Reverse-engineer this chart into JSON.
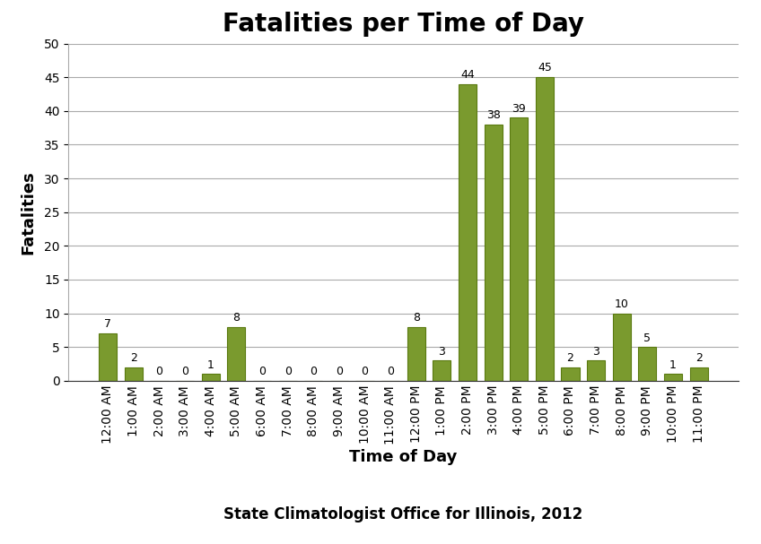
{
  "title": "Fatalities per Time of Day",
  "xlabel": "Time of Day",
  "ylabel": "Fatalities",
  "source": "State Climatologist Office for Illinois, 2012",
  "categories": [
    "12:00 AM",
    "1:00 AM",
    "2:00 AM",
    "3:00 AM",
    "4:00 AM",
    "5:00 AM",
    "6:00 AM",
    "7:00 AM",
    "8:00 AM",
    "9:00 AM",
    "10:00 AM",
    "11:00 AM",
    "12:00 PM",
    "1:00 PM",
    "2:00 PM",
    "3:00 PM",
    "4:00 PM",
    "5:00 PM",
    "6:00 PM",
    "7:00 PM",
    "8:00 PM",
    "9:00 PM",
    "10:00 PM",
    "11:00 PM"
  ],
  "values": [
    7,
    2,
    0,
    0,
    1,
    8,
    0,
    0,
    0,
    0,
    0,
    0,
    8,
    3,
    44,
    38,
    39,
    45,
    2,
    3,
    10,
    5,
    1,
    2
  ],
  "bar_color": "#7A9A2E",
  "bar_edge_color": "#5A7A10",
  "ylim": [
    0,
    50
  ],
  "yticks": [
    0,
    5,
    10,
    15,
    20,
    25,
    30,
    35,
    40,
    45,
    50
  ],
  "grid_color": "#AAAAAA",
  "background_color": "#FFFFFF",
  "title_fontsize": 20,
  "label_fontsize": 13,
  "tick_fontsize": 10,
  "source_fontsize": 12,
  "annot_fontsize": 9
}
